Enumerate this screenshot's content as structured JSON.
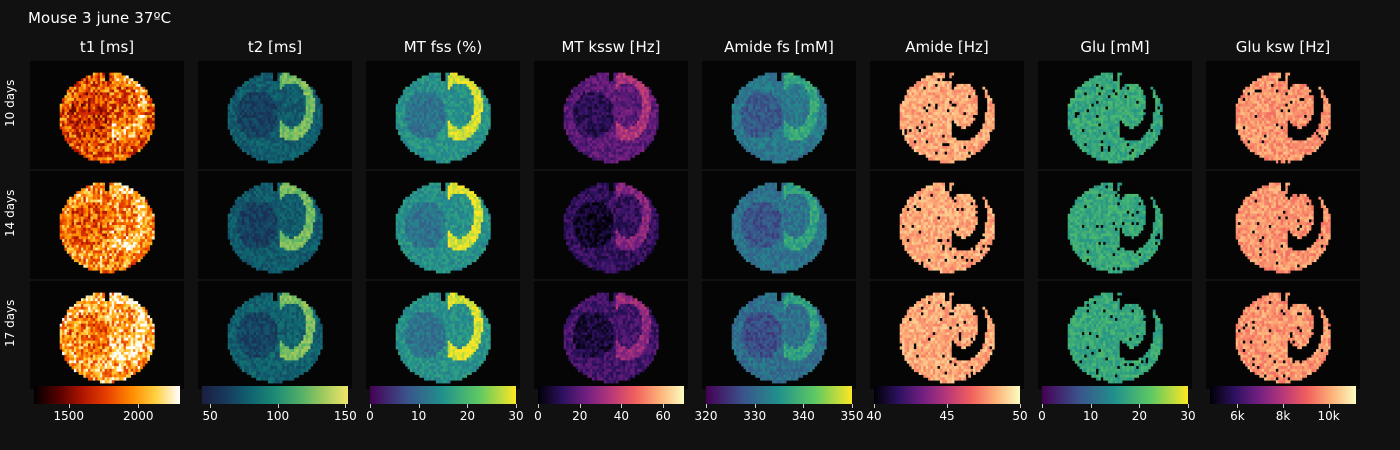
{
  "title": "Mouse 3 june 37ºC",
  "rows": [
    "10 days",
    "14 days",
    "17 days"
  ],
  "columns": [
    {
      "name": "t1 [ms]",
      "colormap": "hot",
      "range": [
        1250,
        2300
      ],
      "ticks": [
        {
          "v": 1500,
          "label": "1500"
        },
        {
          "v": 2000,
          "label": "2000"
        }
      ],
      "stops": [
        "#000000",
        "#550000",
        "#b01500",
        "#e84000",
        "#ff8a00",
        "#ffd040",
        "#ffffff"
      ]
    },
    {
      "name": "t2 [ms]",
      "colormap": "haline",
      "range": [
        44,
        152
      ],
      "ticks": [
        {
          "v": 50,
          "label": "50"
        },
        {
          "v": 100,
          "label": "100"
        },
        {
          "v": 150,
          "label": "150"
        }
      ],
      "stops": [
        "#1b1e40",
        "#183a5d",
        "#0f6470",
        "#1d8a75",
        "#4dad68",
        "#a0ca5d",
        "#f0e66b"
      ]
    },
    {
      "name": "MT fss (%)",
      "colormap": "viridis",
      "range": [
        0,
        30
      ],
      "ticks": [
        {
          "v": 0,
          "label": "0"
        },
        {
          "v": 10,
          "label": "10"
        },
        {
          "v": 20,
          "label": "20"
        },
        {
          "v": 30,
          "label": "30"
        }
      ],
      "stops": [
        "#440154",
        "#3b528b",
        "#21918c",
        "#5ec962",
        "#fde725"
      ]
    },
    {
      "name": "MT kssw [Hz]",
      "colormap": "magma",
      "range": [
        0,
        70
      ],
      "ticks": [
        {
          "v": 0,
          "label": "0"
        },
        {
          "v": 20,
          "label": "20"
        },
        {
          "v": 40,
          "label": "40"
        },
        {
          "v": 60,
          "label": "60"
        }
      ],
      "stops": [
        "#000004",
        "#2c115f",
        "#721f81",
        "#b73779",
        "#f1605d",
        "#feb078",
        "#fcfdbf"
      ]
    },
    {
      "name": "Amide fs [mM]",
      "colormap": "viridis",
      "range": [
        320,
        350
      ],
      "ticks": [
        {
          "v": 320,
          "label": "320"
        },
        {
          "v": 330,
          "label": "330"
        },
        {
          "v": 340,
          "label": "340"
        },
        {
          "v": 350,
          "label": "350"
        }
      ],
      "stops": [
        "#440154",
        "#3b528b",
        "#21918c",
        "#5ec962",
        "#fde725"
      ]
    },
    {
      "name": "Amide [Hz]",
      "colormap": "magma",
      "range": [
        40,
        50
      ],
      "ticks": [
        {
          "v": 40,
          "label": "40"
        },
        {
          "v": 45,
          "label": "45"
        },
        {
          "v": 50,
          "label": "50"
        }
      ],
      "stops": [
        "#000004",
        "#2c115f",
        "#721f81",
        "#b73779",
        "#f1605d",
        "#feb078",
        "#fcfdbf"
      ]
    },
    {
      "name": "Glu [mM]",
      "colormap": "viridis",
      "range": [
        0,
        30
      ],
      "ticks": [
        {
          "v": 0,
          "label": "0"
        },
        {
          "v": 10,
          "label": "10"
        },
        {
          "v": 20,
          "label": "20"
        },
        {
          "v": 30,
          "label": "30"
        }
      ],
      "stops": [
        "#440154",
        "#3b528b",
        "#21918c",
        "#5ec962",
        "#fde725"
      ]
    },
    {
      "name": "Glu ksw [Hz]",
      "colormap": "magma",
      "range": [
        4800,
        11200
      ],
      "ticks": [
        {
          "v": 6000,
          "label": "6k"
        },
        {
          "v": 8000,
          "label": "8k"
        },
        {
          "v": 10000,
          "label": "10k"
        }
      ],
      "stops": [
        "#000004",
        "#2c115f",
        "#721f81",
        "#b73779",
        "#f1605d",
        "#feb078",
        "#fcfdbf"
      ]
    }
  ],
  "chart_data": {
    "type": "heatmap",
    "title": "Mouse 3 june 37ºC",
    "rows": [
      "10 days",
      "14 days",
      "17 days"
    ],
    "columns": [
      "t1 [ms]",
      "t2 [ms]",
      "MT fss (%)",
      "MT kssw [Hz]",
      "Amide fs [mM]",
      "Amide [Hz]",
      "Glu [mM]",
      "Glu ksw [Hz]"
    ],
    "colorbar_ranges": [
      [
        1250,
        2300
      ],
      [
        44,
        152
      ],
      [
        0,
        30
      ],
      [
        0,
        70
      ],
      [
        320,
        350
      ],
      [
        40,
        50
      ],
      [
        0,
        30
      ],
      [
        4800,
        11200
      ]
    ],
    "panel_levels": [
      [
        0.55,
        0.3,
        0.5,
        0.28,
        0.4,
        0.82,
        0.6,
        0.78
      ],
      [
        0.68,
        0.3,
        0.5,
        0.18,
        0.38,
        0.82,
        0.6,
        0.78
      ],
      [
        0.75,
        0.32,
        0.5,
        0.22,
        0.36,
        0.82,
        0.6,
        0.78
      ]
    ],
    "legend": "colorbar below each column"
  }
}
